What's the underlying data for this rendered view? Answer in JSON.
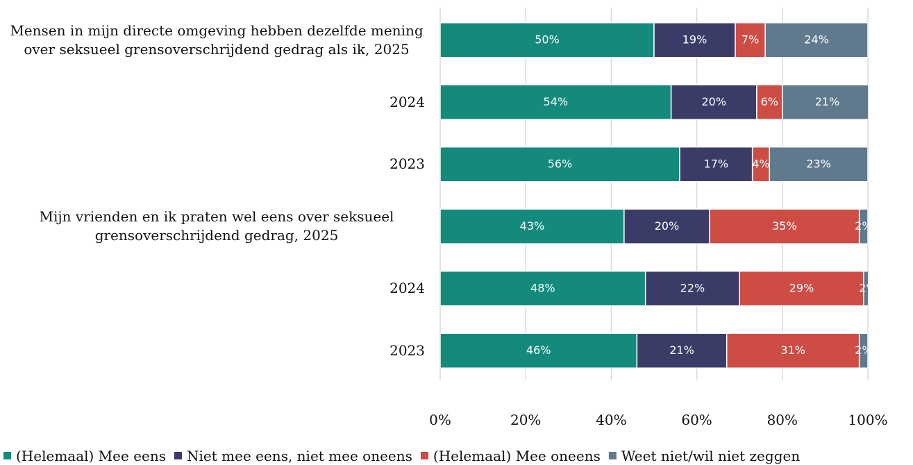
{
  "chart_data": {
    "type": "stacked_bar_horizontal",
    "categories": [
      "Mensen in mijn directe omgeving hebben dezelfde mening over seksueel grensoverschrijdend gedrag als ik, 2025",
      "2024",
      "2023",
      "Mijn vrienden en ik praten wel eens over seksueel grensoverschrijdend gedrag, 2025",
      "2024",
      "2023"
    ],
    "series": [
      {
        "name": "(Helemaal) Mee eens",
        "color": "#148a7c",
        "values": [
          50,
          54,
          56,
          43,
          48,
          46
        ],
        "value_labels": [
          "50%",
          "54%",
          "56%",
          "43%",
          "48%",
          "46%"
        ]
      },
      {
        "name": "Niet mee eens, niet mee oneens",
        "color": "#3a3c68",
        "values": [
          19,
          20,
          17,
          20,
          22,
          21
        ],
        "value_labels": [
          "19%",
          "20%",
          "17%",
          "20%",
          "22%",
          "21%"
        ]
      },
      {
        "name": "(Helemaal) Mee oneens",
        "color": "#cd4c44",
        "values": [
          7,
          6,
          4,
          35,
          29,
          31
        ],
        "value_labels": [
          "7%",
          "6%",
          "4%",
          "35%",
          "29%",
          "31%"
        ]
      },
      {
        "name": "Weet niet/wil niet zeggen",
        "color": "#5f7a8d",
        "values": [
          24,
          21,
          23,
          2,
          2,
          2
        ],
        "value_labels": [
          "24%",
          "21%",
          "23%",
          "2%",
          "2%",
          "2%"
        ]
      }
    ],
    "xlim": [
      0,
      100
    ],
    "xticks": [
      {
        "value": 0,
        "label": "0%"
      },
      {
        "value": 20,
        "label": "20%"
      },
      {
        "value": 40,
        "label": "40%"
      },
      {
        "value": 60,
        "label": "60%"
      },
      {
        "value": 80,
        "label": "80%"
      },
      {
        "value": 100,
        "label": "100%"
      }
    ],
    "grid": true,
    "legend": "bottom"
  }
}
